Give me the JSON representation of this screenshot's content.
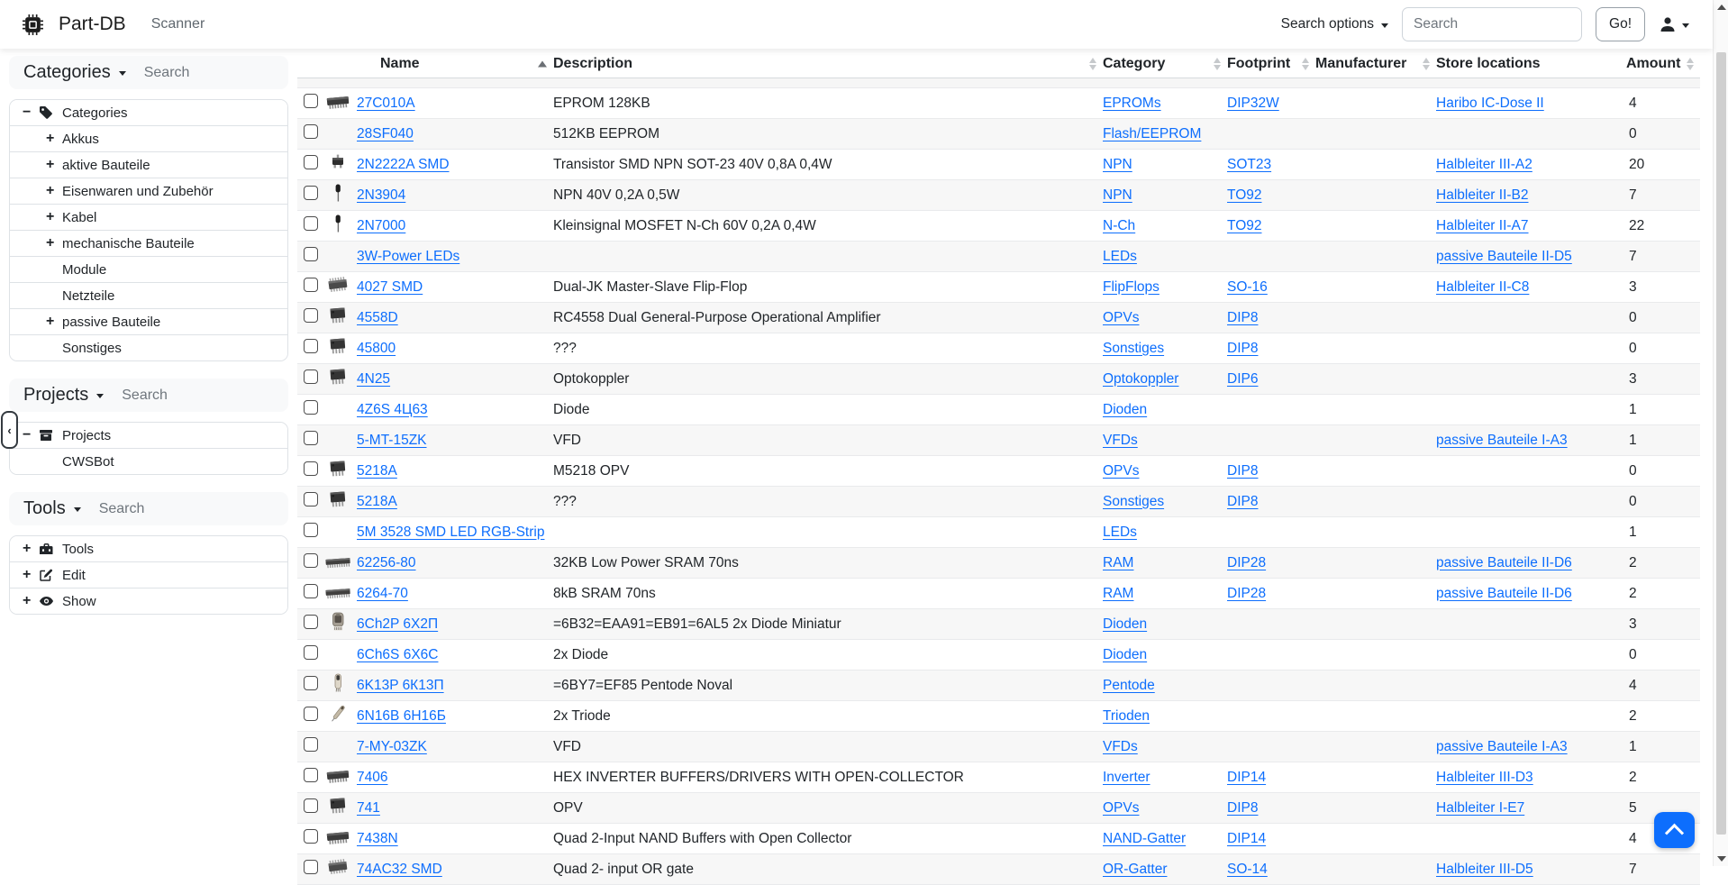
{
  "navbar": {
    "brand": "Part-DB",
    "brand_icon": "microchip-icon",
    "nav_items": [
      {
        "label": "Scanner"
      }
    ],
    "search_options_label": "Search options",
    "search_placeholder": "Search",
    "go_label": "Go!",
    "user_icon": "user-icon"
  },
  "sidebar": {
    "sections": [
      {
        "title": "Categories",
        "search_placeholder": "Search",
        "tree": [
          {
            "label": "Categories",
            "toggle": "minus",
            "icon": "tag-icon",
            "level": 0
          },
          {
            "label": "Akkus",
            "toggle": "plus",
            "level": 1
          },
          {
            "label": "aktive Bauteile",
            "toggle": "plus",
            "level": 1
          },
          {
            "label": "Eisenwaren und Zubehör",
            "toggle": "plus",
            "level": 1
          },
          {
            "label": "Kabel",
            "toggle": "plus",
            "level": 1
          },
          {
            "label": "mechanische Bauteile",
            "toggle": "plus",
            "level": 1
          },
          {
            "label": "Module",
            "toggle": "none",
            "level": 1
          },
          {
            "label": "Netzteile",
            "toggle": "none",
            "level": 1
          },
          {
            "label": "passive Bauteile",
            "toggle": "plus",
            "level": 1
          },
          {
            "label": "Sonstiges",
            "toggle": "none",
            "level": 1
          }
        ]
      },
      {
        "title": "Projects",
        "search_placeholder": "Search",
        "tree": [
          {
            "label": "Projects",
            "toggle": "minus",
            "icon": "archive-icon",
            "level": 0
          },
          {
            "label": "CWSBot",
            "toggle": "none",
            "level": 1
          }
        ]
      },
      {
        "title": "Tools",
        "search_placeholder": "Search",
        "tree": [
          {
            "label": "Tools",
            "toggle": "plus",
            "icon": "toolbox-icon",
            "level": 0
          },
          {
            "label": "Edit",
            "toggle": "plus",
            "icon": "pen-square-icon",
            "level": 0
          },
          {
            "label": "Show",
            "toggle": "plus",
            "icon": "eye-icon",
            "level": 0
          }
        ]
      }
    ]
  },
  "table": {
    "columns": [
      "Name",
      "Description",
      "Category",
      "Footprint",
      "Manufacturer",
      "Store locations",
      "Amount"
    ],
    "sort_icons": [
      "asc",
      "updown",
      "updown",
      "updown",
      "updown",
      "none",
      "updown"
    ],
    "sort": {
      "column": "Name",
      "direction": "ascending"
    },
    "rows": [
      {
        "thumb": "dip-side",
        "name": "27C010A",
        "description": "EPROM 128KB",
        "category": "EPROMs",
        "footprint": "DIP32W",
        "manufacturer": "",
        "store_location": "Haribo IC-Dose II",
        "amount": "4"
      },
      {
        "thumb": "",
        "name": "28SF040",
        "description": "512KB EEPROM",
        "category": "Flash/EEPROM",
        "footprint": "",
        "manufacturer": "",
        "store_location": "",
        "amount": "0"
      },
      {
        "thumb": "sot23",
        "name": "2N2222A SMD",
        "description": "Transistor SMD NPN SOT-23 40V 0,8A 0,4W",
        "category": "NPN",
        "footprint": "SOT23",
        "manufacturer": "",
        "store_location": "Halbleiter III-A2",
        "amount": "20"
      },
      {
        "thumb": "to92",
        "name": "2N3904",
        "description": "NPN 40V 0,2A 0,5W",
        "category": "NPN",
        "footprint": "TO92",
        "manufacturer": "",
        "store_location": "Halbleiter II-B2",
        "amount": "7"
      },
      {
        "thumb": "to92",
        "name": "2N7000",
        "description": "Kleinsignal MOSFET N-Ch 60V 0,2A 0,4W",
        "category": "N-Ch",
        "footprint": "TO92",
        "manufacturer": "",
        "store_location": "Halbleiter II-A7",
        "amount": "22"
      },
      {
        "thumb": "",
        "name": "3W-Power LEDs",
        "description": "",
        "category": "LEDs",
        "footprint": "",
        "manufacturer": "",
        "store_location": "passive Bauteile II-D5",
        "amount": "7"
      },
      {
        "thumb": "soic",
        "name": "4027 SMD",
        "description": "Dual-JK Master-Slave Flip-Flop",
        "category": "FlipFlops",
        "footprint": "SO-16",
        "manufacturer": "",
        "store_location": "Halbleiter II-C8",
        "amount": "3"
      },
      {
        "thumb": "dip8",
        "name": "4558D",
        "description": "RC4558 Dual General-Purpose Operational Amplifier",
        "category": "OPVs",
        "footprint": "DIP8",
        "manufacturer": "",
        "store_location": "",
        "amount": "0"
      },
      {
        "thumb": "dip8",
        "name": "45800",
        "description": "???",
        "category": "Sonstiges",
        "footprint": "DIP8",
        "manufacturer": "",
        "store_location": "",
        "amount": "0"
      },
      {
        "thumb": "dip8",
        "name": "4N25",
        "description": "Optokoppler",
        "category": "Optokoppler",
        "footprint": "DIP6",
        "manufacturer": "",
        "store_location": "",
        "amount": "3"
      },
      {
        "thumb": "",
        "name": "4Z6S 4Ц63",
        "description": "Diode",
        "category": "Dioden",
        "footprint": "",
        "manufacturer": "",
        "store_location": "",
        "amount": "1"
      },
      {
        "thumb": "",
        "name": "5-MT-15ZK",
        "description": "VFD",
        "category": "VFDs",
        "footprint": "",
        "manufacturer": "",
        "store_location": "passive Bauteile I-A3",
        "amount": "1"
      },
      {
        "thumb": "dip8",
        "name": "5218A",
        "description": "M5218 OPV",
        "category": "OPVs",
        "footprint": "DIP8",
        "manufacturer": "",
        "store_location": "",
        "amount": "0"
      },
      {
        "thumb": "dip8",
        "name": "5218A",
        "description": "???",
        "category": "Sonstiges",
        "footprint": "DIP8",
        "manufacturer": "",
        "store_location": "",
        "amount": "0"
      },
      {
        "thumb": "",
        "name": "5M 3528 SMD LED RGB-Strip",
        "description": "",
        "category": "LEDs",
        "footprint": "",
        "manufacturer": "",
        "store_location": "",
        "amount": "1"
      },
      {
        "thumb": "dip-long",
        "name": "62256-80",
        "description": "32KB Low Power SRAM 70ns",
        "category": "RAM",
        "footprint": "DIP28",
        "manufacturer": "",
        "store_location": "passive Bauteile II-D6",
        "amount": "2"
      },
      {
        "thumb": "dip-long",
        "name": "6264-70",
        "description": "8kB SRAM 70ns",
        "category": "RAM",
        "footprint": "DIP28",
        "manufacturer": "",
        "store_location": "passive Bauteile II-D6",
        "amount": "2"
      },
      {
        "thumb": "tube-photo",
        "name": "6Ch2P 6Х2П",
        "description": "=6B32=EAA91=EB91=6AL5 2x Diode Miniatur",
        "category": "Dioden",
        "footprint": "",
        "manufacturer": "",
        "store_location": "",
        "amount": "3"
      },
      {
        "thumb": "",
        "name": "6Ch6S 6X6C",
        "description": "2x Diode",
        "category": "Dioden",
        "footprint": "",
        "manufacturer": "",
        "store_location": "",
        "amount": "0"
      },
      {
        "thumb": "tube",
        "name": "6K13P 6К13П",
        "description": "=6BY7=EF85 Pentode Noval",
        "category": "Pentode",
        "footprint": "",
        "manufacturer": "",
        "store_location": "",
        "amount": "4"
      },
      {
        "thumb": "tube-small",
        "name": "6N16B 6Н16Б",
        "description": "2x Triode",
        "category": "Trioden",
        "footprint": "",
        "manufacturer": "",
        "store_location": "",
        "amount": "2"
      },
      {
        "thumb": "",
        "name": "7-MY-03ZK",
        "description": "VFD",
        "category": "VFDs",
        "footprint": "",
        "manufacturer": "",
        "store_location": "passive Bauteile I-A3",
        "amount": "1"
      },
      {
        "thumb": "dip-side",
        "name": "7406",
        "description": "HEX INVERTER BUFFERS/DRIVERS WITH OPEN-COLLECTOR",
        "category": "Inverter",
        "footprint": "DIP14",
        "manufacturer": "",
        "store_location": "Halbleiter III-D3",
        "amount": "2"
      },
      {
        "thumb": "dip8",
        "name": "741",
        "description": "OPV",
        "category": "OPVs",
        "footprint": "DIP8",
        "manufacturer": "",
        "store_location": "Halbleiter I-E7",
        "amount": "5"
      },
      {
        "thumb": "dip-side",
        "name": "7438N",
        "description": "Quad 2-Input NAND Buffers with Open Collector",
        "category": "NAND-Gatter",
        "footprint": "DIP14",
        "manufacturer": "",
        "store_location": "",
        "amount": "4"
      },
      {
        "thumb": "soic",
        "name": "74AC32 SMD",
        "description": "Quad 2- input OR gate",
        "category": "OR-Gatter",
        "footprint": "SO-14",
        "manufacturer": "",
        "store_location": "Halbleiter III-D5",
        "amount": "7"
      }
    ]
  },
  "colors": {
    "link": "#0d6efd",
    "accent": "#0d6efd",
    "stripe": "#f7f7f7",
    "border": "#dee2e6"
  }
}
